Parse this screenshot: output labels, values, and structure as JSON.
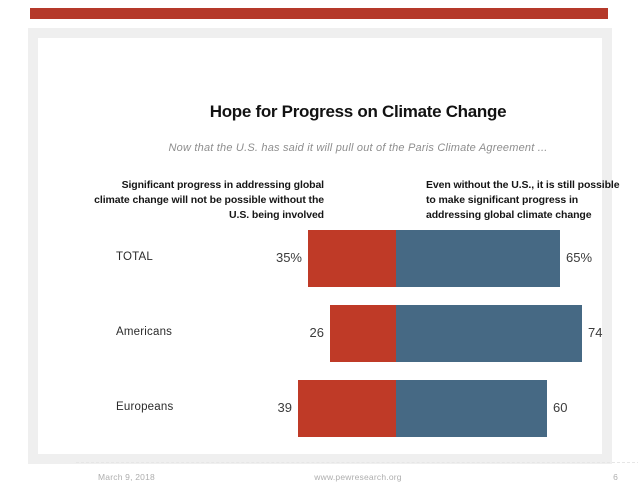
{
  "page": {
    "top_bar_color": "#b5392a",
    "frame_color": "#efefef",
    "background_color": "#ffffff"
  },
  "slide": {
    "footer": {
      "date": "March 9, 2018",
      "site": "www.pewresearch.org",
      "page_number": "6"
    }
  },
  "chart_data": {
    "type": "bar",
    "subtype": "diverging-horizontal-stacked",
    "orientation": "horizontal",
    "title": "Hope for Progress on Climate Change",
    "subtitle": "Now that the U.S. has said it will pull out of the Paris Climate Agreement ...",
    "categories": [
      "TOTAL",
      "Americans",
      "Europeans"
    ],
    "series": [
      {
        "name": "Significant progress in addressing global climate change will not be possible without the U.S. being involved",
        "header_lines": "Significant progress in addressing global\nclimate change will not be possible without the\nU.S. being involved",
        "side": "left",
        "color": "#bf3a27",
        "values": [
          35,
          26,
          39
        ],
        "value_labels": [
          "35%",
          "26",
          "39"
        ]
      },
      {
        "name": "Even without the U.S., it is still possible to make significant progress in addressing global climate change",
        "header_lines": "Even without the U.S., it is still possible\nto make significant progress in\naddressing global climate change",
        "side": "right",
        "color": "#466984",
        "values": [
          65,
          74,
          60
        ],
        "value_labels": [
          "65%",
          "74",
          "60"
        ]
      }
    ],
    "xlim": [
      0,
      100
    ],
    "grid": false,
    "legend_position": "column-headers-above-bars",
    "value_label_position": "outside-ends"
  }
}
